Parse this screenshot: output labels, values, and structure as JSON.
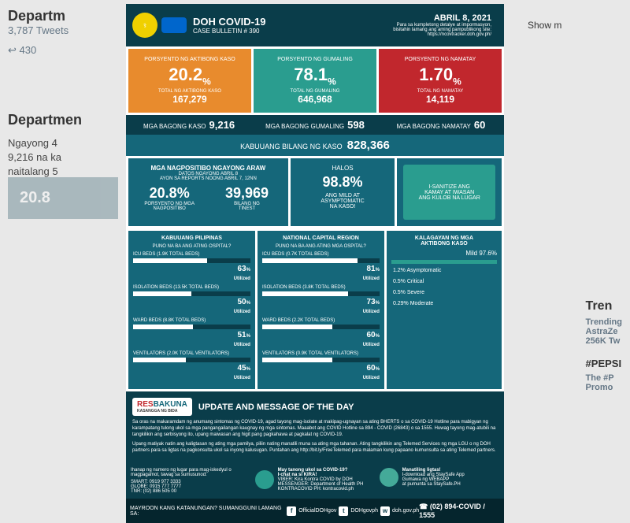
{
  "background": {
    "header": "Departm",
    "tweets_count": "3,787 Tweets",
    "retweets": "430",
    "account": "Departmen",
    "tweet_text": "Ngayong 4\n9,216 na ka\nnaitalang 5",
    "faded_stat": "20.8",
    "show_more": "Show m",
    "trending_title": "Tren",
    "trending_sub": "Trending\nAstraZe\n256K Tw",
    "hashtag": "#PEPSI",
    "hashtag_sub": "The #P\nPromo"
  },
  "header": {
    "title": "DOH COVID-19",
    "subtitle": "CASE BULLETIN # 390",
    "date": "ABRIL 8, 2021",
    "date_sub": "Para sa kumpletong detalye at impormasyon,\nbisitahin lamang ang aming pampublikong site:\nhttps://ncovtracker.doh.gov.ph/"
  },
  "top_stats": {
    "active": {
      "label": "PORSYENTO NG AKTIBONG KASO",
      "pct": "20.2",
      "total_label": "TOTAL NG AKTIBONG KASO",
      "total": "167,279",
      "color": "#e88b2d"
    },
    "recovered": {
      "label": "PORSYENTO NG GUMALING",
      "pct": "78.1",
      "total_label": "TOTAL NG GUMALING",
      "total": "646,968",
      "color": "#2a9d8f"
    },
    "died": {
      "label": "PORSYENTO NG NAMATAY",
      "pct": "1.70",
      "total_label": "TOTAL NG NAMATAY",
      "total": "14,119",
      "color": "#c1272d"
    }
  },
  "new_row": {
    "cases": {
      "label": "MGA BAGONG KASO",
      "val": "9,216"
    },
    "recovered": {
      "label": "MGA BAGONG GUMALING",
      "val": "598"
    },
    "died": {
      "label": "MGA BAGONG NAMATAY",
      "val": "60"
    }
  },
  "kabuuan": {
    "label": "KABUUANG BILANG NG KASO",
    "val": "828,366"
  },
  "mid": {
    "positive": {
      "title": "MGA NAGPOSITIBO NGAYONG ARAW",
      "sub": "DATOS NGAYONG ABRIL 8\nAYON SA REPORTS NOONG ABRIL 7, 12NN",
      "pct": "20.8",
      "pct_label": "PORSYENTO NG MGA\nNAGPOSITIBO",
      "count": "39,969",
      "count_label": "BILANG NG\nTINEST"
    },
    "halos": {
      "title": "HALOS",
      "pct": "98.8",
      "sub": "ANG MILD AT\nASYMPTOMATIC\nNA KASO!"
    },
    "sanitize": "I-SANITIZE ANG\nKAMAY AT IWASAN\nANG KULOB NA LUGAR"
  },
  "beds_ph": {
    "title": "KABUUANG PILIPINAS",
    "sub": "PUNO NA BA ANG ATING OSPITAL?",
    "rows": [
      {
        "label": "ICU BEDS (1.9K TOTAL BEDS)",
        "pct": 63
      },
      {
        "label": "ISOLATION BEDS (13.5K TOTAL BEDS)",
        "pct": 50
      },
      {
        "label": "WARD BEDS (8.8K TOTAL BEDS)",
        "pct": 51
      },
      {
        "label": "VENTILATORS (2.0K TOTAL VENTILATORS)",
        "pct": 45
      }
    ]
  },
  "beds_ncr": {
    "title": "NATIONAL CAPITAL REGION",
    "sub": "PUNO NA BA ANG ATING MGA OSPITAL?",
    "rows": [
      {
        "label": "ICU BEDS (0.7K TOTAL BEDS)",
        "pct": 81
      },
      {
        "label": "ISOLATION BEDS (3.8K TOTAL BEDS)",
        "pct": 73
      },
      {
        "label": "WARD BEDS (2.2K TOTAL BEDS)",
        "pct": 60
      },
      {
        "label": "VENTILATORS (0.9K TOTAL VENTILATORS)",
        "pct": 60
      }
    ]
  },
  "status": {
    "title": "KALAGAYAN NG MGA\nAKTIBONG KASO",
    "mild": "Mild 97.6%",
    "rows": [
      "1.2% Asymptomatic",
      "0.5% Critical",
      "0.5% Severe",
      "0.29% Moderate"
    ]
  },
  "resbakuna": {
    "logo": "RESBAKUNA",
    "logo_sub": "KASANGGA NG BIDA",
    "title": "UPDATE AND MESSAGE OF THE DAY",
    "p1": "Sa oras na makaramdam ng anumang sintomas ng COVID-19, agad tayong mag-isolate at makipag-ugnayan sa ating BHERTS o sa COVID-19 Hotline para mabigyan ng karampatang tulong ukol sa mga pangangailangan kaugnay ng mga sintomas. Maaabot ang COVID Hotline sa 894 - COVID (26843) o sa 1555. Huwag tayong mag-atubili na tangkilikin ang serbisyong ito, upang maiwasan ang higit pang pagkahawa at pagkalat ng COVID-19.",
    "p2": "Upang matiyak natin ang kaligtasan ng ating mga pamilya, piliin nating manatili muna sa ating mga tahanan. Ating tangkilikin ang Telemed Services ng mga LGU o ng DOH partners para sa ligtas na pagkonsulta ukol sa inyong kalusugan. Puntahan ang http://bit.ly/FreeTelemed para malaman kung papaano kumunsulta sa ating Telemed partners."
  },
  "footer": {
    "col1_title": "Ihanap ng numero ng lugar para mag-iskedyul o\nmagpagamot, tawag sa sumusunod:",
    "col1_lines": "SMART: 0919 977 3333\nGLOBE: 0915 777 7777\nTNR: (02) 886 505 00",
    "col2_title": "May tanong ukol sa COVID-19?\nI-chat na si KIRA!",
    "col2_lines": "VIBER: Kira Kontra COVID by DOH\nMESSENGER: Department of Health PH\nKONTRACOVID PH: kontracovid.ph",
    "col3_title": "Manatiling ligtas!",
    "col3_lines": "I-download ang StaySafe App\nGumawa ng WEBAPP\nat pumunta sa StaySafe.PH"
  },
  "footer_bottom": {
    "left": "MAYROON KANG KATANUNGAN? SUMANGGUNI LAMANG SA:",
    "social": [
      "OfficialDOHgov",
      "DOHgovph",
      "doh.gov.ph"
    ],
    "hotline": "(02) 894-COVID / 1555"
  }
}
